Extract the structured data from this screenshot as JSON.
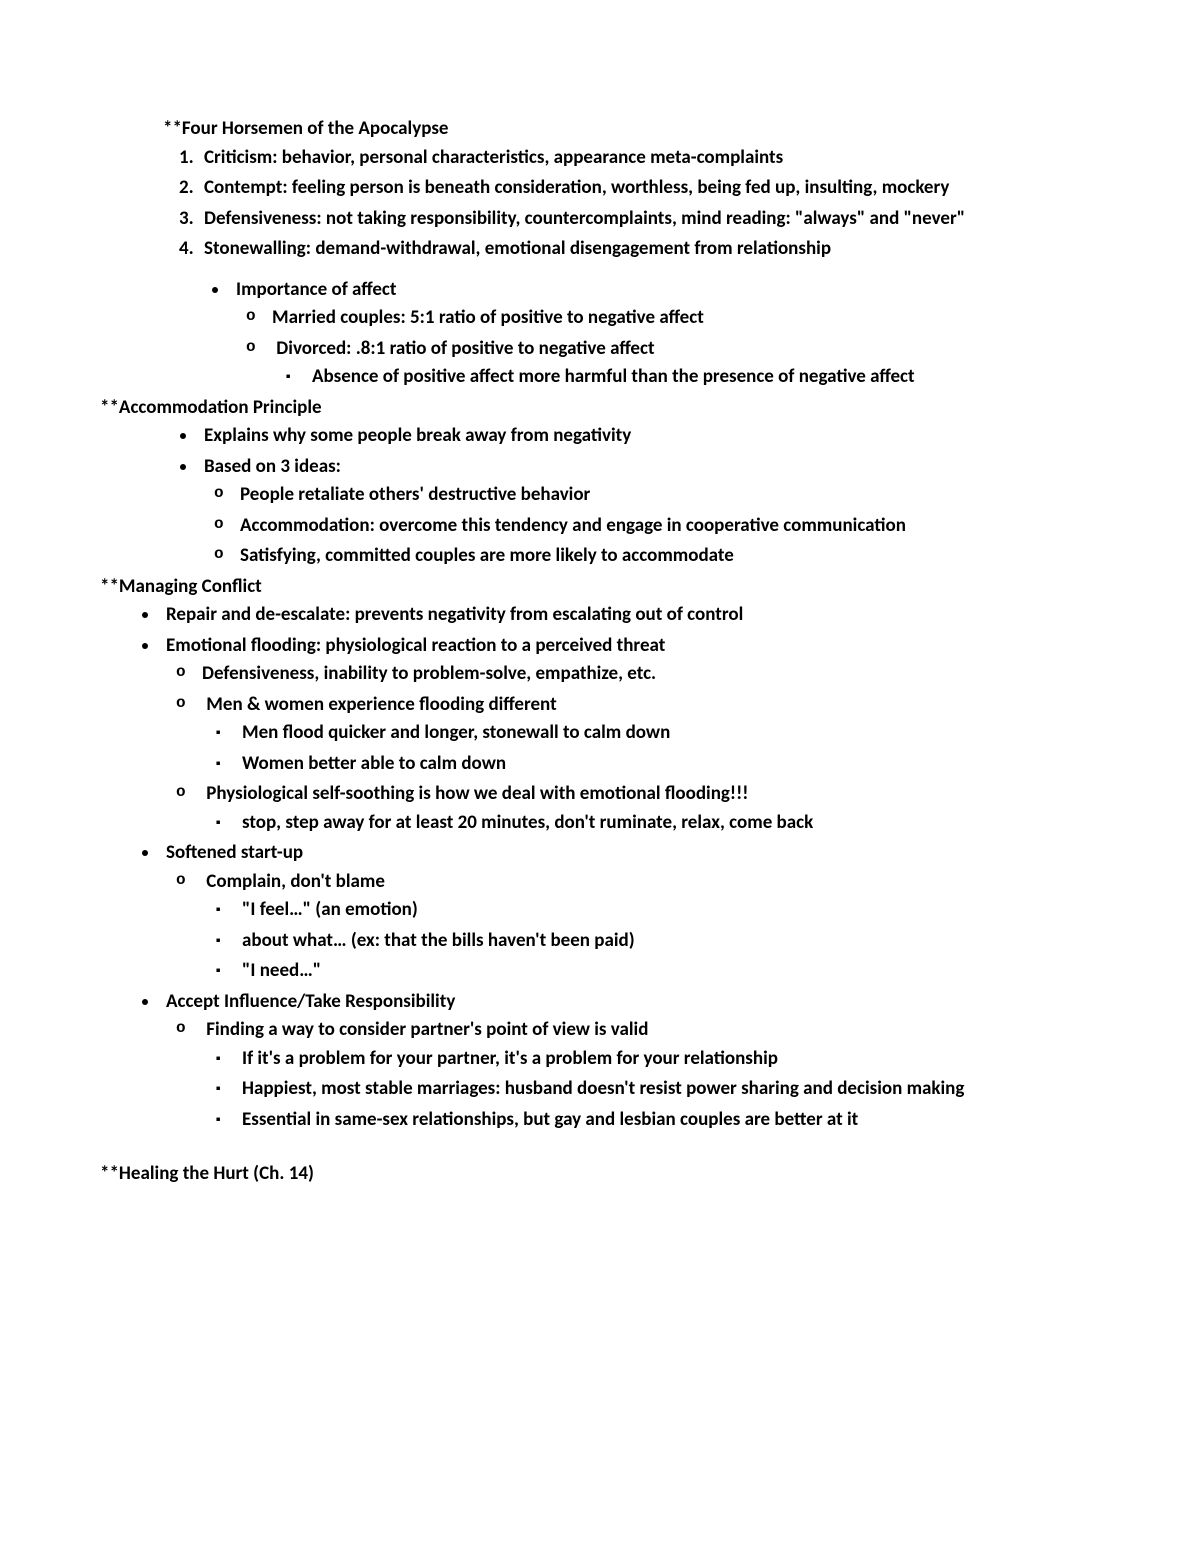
{
  "sections": {
    "horsemen": {
      "title": "**Four Horsemen of the Apocalypse",
      "items": [
        "Criticism: behavior, personal characteristics, appearance meta-complaints",
        "Contempt: feeling person is beneath consideration, worthless, being fed up, insulting, mockery",
        "Defensiveness: not taking responsibility, countercomplaints, mind reading: \"always\" and \"never\"",
        "Stonewalling: demand-withdrawal, emotional disengagement from relationship"
      ],
      "affect": {
        "title": "Importance of affect",
        "sub": [
          "Married couples: 5:1 ratio of positive to negative affect",
          "Divorced: .8:1 ratio of positive to negative affect"
        ],
        "sub2": [
          "Absence of positive affect more harmful than the presence of negative affect"
        ]
      }
    },
    "accommodation": {
      "title": "**Accommodation Principle",
      "bullets": [
        "Explains why some people break away from negativity",
        "Based on 3 ideas:"
      ],
      "sub": [
        "People retaliate others' destructive behavior",
        "Accommodation: overcome this tendency and engage in cooperative communication",
        "Satisfying, committed couples are more likely to accommodate"
      ]
    },
    "managing": {
      "title": "**Managing Conflict",
      "repair": "Repair and de-escalate: prevents negativity from escalating out of control",
      "flooding": {
        "title": "Emotional flooding: physiological reaction to a perceived threat",
        "sub_a": "Defensiveness, inability to problem-solve, empathize, etc.",
        "sub_b": "Men & women experience flooding different",
        "sub_b_items": [
          "Men flood quicker and longer, stonewall to calm down",
          "Women better able to calm down"
        ],
        "sub_c_bold": "Physiological self-soothing",
        "sub_c_rest": " is how we deal with emotional flooding!!!",
        "sub_c_items": [
          "stop, step away for at least 20 minutes, don't ruminate, relax, come back"
        ]
      },
      "softened": {
        "title": "Softened start-up",
        "sub_a": "Complain, don't blame",
        "items": [
          "\"I feel…\" (an emotion)",
          "about what… (ex: that the bills haven't been paid)",
          "\"I need…\""
        ]
      },
      "accept": {
        "title": "Accept Influence/Take Responsibility",
        "sub_a": "Finding a way to consider partner's point of view is valid",
        "items": [
          "If it's a problem for your partner, it's a problem for your relationship",
          "Happiest, most stable marriages: husband doesn't resist power sharing and decision making",
          "Essential in same-sex relationships, but gay and lesbian couples are better at it"
        ]
      }
    },
    "healing": {
      "title": "**Healing the Hurt (Ch. 14)"
    }
  }
}
